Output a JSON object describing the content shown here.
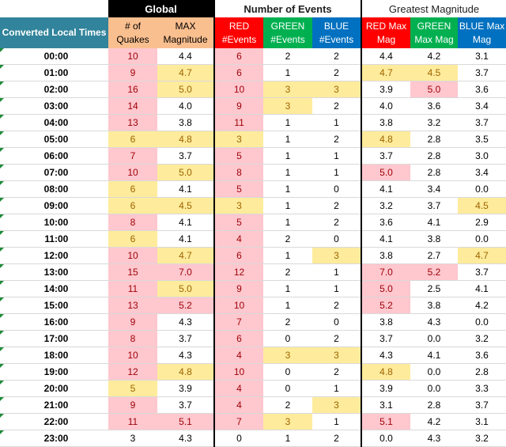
{
  "groups": {
    "global": "Global",
    "events": "Number of Events",
    "magnitude": "Greatest Magnitude"
  },
  "headers": {
    "time": "Converted Local Times",
    "quakes": [
      "# of",
      "Quakes"
    ],
    "max_mag": [
      "MAX",
      "Magnitude"
    ],
    "red_events": [
      "RED",
      "#Events"
    ],
    "green_events": [
      "GREEN",
      "#Events"
    ],
    "blue_events": [
      "BLUE",
      "#Events"
    ],
    "red_mag": [
      "RED Max",
      "Mag"
    ],
    "green_mag": [
      "GREEN",
      "Max Mag"
    ],
    "blue_mag": [
      "BLUE Max",
      "Mag"
    ]
  },
  "colors": {
    "teal": "#31849b",
    "peach": "#fabf8f",
    "red": "#ff0000",
    "green": "#00b050",
    "blue": "#0070c0",
    "pink_fill": "#ffc7ce",
    "yellow_fill": "#ffeb9c",
    "footer": "#4f81bd"
  },
  "rows": [
    {
      "h": "00",
      "m": ":00",
      "q": "10",
      "qc": "p",
      "mx": "4.4",
      "mxc": "",
      "re": "6",
      "rec": "p",
      "ge": "2",
      "gec": "",
      "be": "2",
      "bec": "",
      "rm": "4.4",
      "rmc": "",
      "gm": "4.2",
      "gmc": "",
      "bm": "3.1",
      "bmc": ""
    },
    {
      "h": "01",
      "m": ":00",
      "q": "9",
      "qc": "p",
      "mx": "4.7",
      "mxc": "y",
      "re": "6",
      "rec": "p",
      "ge": "1",
      "gec": "",
      "be": "2",
      "bec": "",
      "rm": "4.7",
      "rmc": "y",
      "gm": "4.5",
      "gmc": "y",
      "bm": "3.7",
      "bmc": ""
    },
    {
      "h": "02",
      "m": ":00",
      "q": "16",
      "qc": "p",
      "mx": "5.0",
      "mxc": "y",
      "re": "10",
      "rec": "p",
      "ge": "3",
      "gec": "y",
      "be": "3",
      "bec": "y",
      "rm": "3.9",
      "rmc": "",
      "gm": "5.0",
      "gmc": "p",
      "bm": "3.6",
      "bmc": ""
    },
    {
      "h": "03",
      "m": ":00",
      "q": "14",
      "qc": "p",
      "mx": "4.0",
      "mxc": "",
      "re": "9",
      "rec": "p",
      "ge": "3",
      "gec": "y",
      "be": "2",
      "bec": "",
      "rm": "4.0",
      "rmc": "",
      "gm": "3.6",
      "gmc": "",
      "bm": "3.4",
      "bmc": ""
    },
    {
      "h": "04",
      "m": ":00",
      "q": "13",
      "qc": "p",
      "mx": "3.8",
      "mxc": "",
      "re": "11",
      "rec": "p",
      "ge": "1",
      "gec": "",
      "be": "1",
      "bec": "",
      "rm": "3.8",
      "rmc": "",
      "gm": "3.2",
      "gmc": "",
      "bm": "3.7",
      "bmc": ""
    },
    {
      "h": "05",
      "m": ":00",
      "q": "6",
      "qc": "y",
      "mx": "4.8",
      "mxc": "y",
      "re": "3",
      "rec": "y",
      "ge": "1",
      "gec": "",
      "be": "2",
      "bec": "",
      "rm": "4.8",
      "rmc": "y",
      "gm": "2.8",
      "gmc": "",
      "bm": "3.5",
      "bmc": ""
    },
    {
      "h": "06",
      "m": ":00",
      "q": "7",
      "qc": "p",
      "mx": "3.7",
      "mxc": "",
      "re": "5",
      "rec": "p",
      "ge": "1",
      "gec": "",
      "be": "1",
      "bec": "",
      "rm": "3.7",
      "rmc": "",
      "gm": "2.8",
      "gmc": "",
      "bm": "3.0",
      "bmc": ""
    },
    {
      "h": "07",
      "m": ":00",
      "q": "10",
      "qc": "p",
      "mx": "5.0",
      "mxc": "y",
      "re": "8",
      "rec": "p",
      "ge": "1",
      "gec": "",
      "be": "1",
      "bec": "",
      "rm": "5.0",
      "rmc": "p",
      "gm": "2.8",
      "gmc": "",
      "bm": "3.4",
      "bmc": ""
    },
    {
      "h": "08",
      "m": ":00",
      "q": "6",
      "qc": "y",
      "mx": "4.1",
      "mxc": "",
      "re": "5",
      "rec": "p",
      "ge": "1",
      "gec": "",
      "be": "0",
      "bec": "",
      "rm": "4.1",
      "rmc": "",
      "gm": "3.4",
      "gmc": "",
      "bm": "0.0",
      "bmc": ""
    },
    {
      "h": "09",
      "m": ":00",
      "q": "6",
      "qc": "y",
      "mx": "4.5",
      "mxc": "y",
      "re": "3",
      "rec": "y",
      "ge": "1",
      "gec": "",
      "be": "2",
      "bec": "",
      "rm": "3.2",
      "rmc": "",
      "gm": "3.7",
      "gmc": "",
      "bm": "4.5",
      "bmc": "y"
    },
    {
      "h": "10",
      "m": ":00",
      "q": "8",
      "qc": "p",
      "mx": "4.1",
      "mxc": "",
      "re": "5",
      "rec": "p",
      "ge": "1",
      "gec": "",
      "be": "2",
      "bec": "",
      "rm": "3.6",
      "rmc": "",
      "gm": "4.1",
      "gmc": "",
      "bm": "2.9",
      "bmc": ""
    },
    {
      "h": "11",
      "m": ":00",
      "q": "6",
      "qc": "y",
      "mx": "4.1",
      "mxc": "",
      "re": "4",
      "rec": "p",
      "ge": "2",
      "gec": "",
      "be": "0",
      "bec": "",
      "rm": "4.1",
      "rmc": "",
      "gm": "3.8",
      "gmc": "",
      "bm": "0.0",
      "bmc": ""
    },
    {
      "h": "12",
      "m": ":00",
      "q": "10",
      "qc": "p",
      "mx": "4.7",
      "mxc": "y",
      "re": "6",
      "rec": "p",
      "ge": "1",
      "gec": "",
      "be": "3",
      "bec": "y",
      "rm": "3.8",
      "rmc": "",
      "gm": "2.7",
      "gmc": "",
      "bm": "4.7",
      "bmc": "y"
    },
    {
      "h": "13",
      "m": ":00",
      "q": "15",
      "qc": "p",
      "mx": "7.0",
      "mxc": "p",
      "re": "12",
      "rec": "p",
      "ge": "2",
      "gec": "",
      "be": "1",
      "bec": "",
      "rm": "7.0",
      "rmc": "p",
      "gm": "5.2",
      "gmc": "p",
      "bm": "3.7",
      "bmc": ""
    },
    {
      "h": "14",
      "m": ":00",
      "q": "11",
      "qc": "p",
      "mx": "5.0",
      "mxc": "y",
      "re": "9",
      "rec": "p",
      "ge": "1",
      "gec": "",
      "be": "1",
      "bec": "",
      "rm": "5.0",
      "rmc": "p",
      "gm": "2.5",
      "gmc": "",
      "bm": "4.1",
      "bmc": ""
    },
    {
      "h": "15",
      "m": ":00",
      "q": "13",
      "qc": "p",
      "mx": "5.2",
      "mxc": "p",
      "re": "10",
      "rec": "p",
      "ge": "1",
      "gec": "",
      "be": "2",
      "bec": "",
      "rm": "5.2",
      "rmc": "p",
      "gm": "3.8",
      "gmc": "",
      "bm": "4.2",
      "bmc": ""
    },
    {
      "h": "16",
      "m": ":00",
      "q": "9",
      "qc": "p",
      "mx": "4.3",
      "mxc": "",
      "re": "7",
      "rec": "p",
      "ge": "2",
      "gec": "",
      "be": "0",
      "bec": "",
      "rm": "3.8",
      "rmc": "",
      "gm": "4.3",
      "gmc": "",
      "bm": "0.0",
      "bmc": ""
    },
    {
      "h": "17",
      "m": ":00",
      "q": "8",
      "qc": "p",
      "mx": "3.7",
      "mxc": "",
      "re": "6",
      "rec": "p",
      "ge": "0",
      "gec": "",
      "be": "2",
      "bec": "",
      "rm": "3.7",
      "rmc": "",
      "gm": "0.0",
      "gmc": "",
      "bm": "3.2",
      "bmc": ""
    },
    {
      "h": "18",
      "m": ":00",
      "q": "10",
      "qc": "p",
      "mx": "4.3",
      "mxc": "",
      "re": "4",
      "rec": "p",
      "ge": "3",
      "gec": "y",
      "be": "3",
      "bec": "y",
      "rm": "4.3",
      "rmc": "",
      "gm": "4.1",
      "gmc": "",
      "bm": "3.6",
      "bmc": ""
    },
    {
      "h": "19",
      "m": ":00",
      "q": "12",
      "qc": "p",
      "mx": "4.8",
      "mxc": "y",
      "re": "10",
      "rec": "p",
      "ge": "0",
      "gec": "",
      "be": "2",
      "bec": "",
      "rm": "4.8",
      "rmc": "y",
      "gm": "0.0",
      "gmc": "",
      "bm": "2.8",
      "bmc": ""
    },
    {
      "h": "20",
      "m": ":00",
      "q": "5",
      "qc": "y",
      "mx": "3.9",
      "mxc": "",
      "re": "4",
      "rec": "p",
      "ge": "0",
      "gec": "",
      "be": "1",
      "bec": "",
      "rm": "3.9",
      "rmc": "",
      "gm": "0.0",
      "gmc": "",
      "bm": "3.3",
      "bmc": ""
    },
    {
      "h": "21",
      "m": ":00",
      "q": "9",
      "qc": "p",
      "mx": "3.7",
      "mxc": "",
      "re": "4",
      "rec": "p",
      "ge": "2",
      "gec": "",
      "be": "3",
      "bec": "y",
      "rm": "3.1",
      "rmc": "",
      "gm": "2.8",
      "gmc": "",
      "bm": "3.7",
      "bmc": ""
    },
    {
      "h": "22",
      "m": ":00",
      "q": "11",
      "qc": "p",
      "mx": "5.1",
      "mxc": "p",
      "re": "7",
      "rec": "p",
      "ge": "3",
      "gec": "y",
      "be": "1",
      "bec": "",
      "rm": "5.1",
      "rmc": "p",
      "gm": "4.2",
      "gmc": "",
      "bm": "3.1",
      "bmc": ""
    },
    {
      "h": "23",
      "m": ":00",
      "q": "3",
      "qc": "",
      "mx": "4.3",
      "mxc": "",
      "re": "0",
      "rec": "",
      "ge": "1",
      "gec": "",
      "be": "2",
      "bec": "",
      "rm": "0.0",
      "rmc": "",
      "gm": "4.3",
      "gmc": "",
      "bm": "3.2",
      "bmc": ""
    }
  ]
}
